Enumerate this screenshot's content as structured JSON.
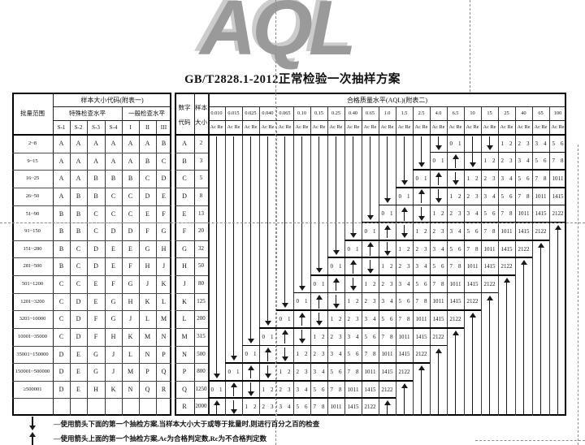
{
  "watermark": "AQL",
  "title": "GB/T2828.1-2012正常检验一次抽样方案",
  "left_table": {
    "batch_header": "批量范围",
    "code_header": "样本大小代码(附表一)",
    "special_header": "特殊检查水平",
    "general_header": "一般检查水平",
    "special_cols": [
      "S-1",
      "S-2",
      "S-3",
      "S-4"
    ],
    "general_cols": [
      "I",
      "II",
      "III"
    ],
    "rows": [
      {
        "range": "2~8",
        "codes": [
          "A",
          "A",
          "A",
          "A",
          "A",
          "A",
          "B"
        ]
      },
      {
        "range": "9~15",
        "codes": [
          "A",
          "A",
          "A",
          "A",
          "A",
          "B",
          "C"
        ]
      },
      {
        "range": "16~25",
        "codes": [
          "A",
          "A",
          "B",
          "B",
          "B",
          "C",
          "D"
        ]
      },
      {
        "range": "26~50",
        "codes": [
          "A",
          "B",
          "B",
          "C",
          "C",
          "D",
          "E"
        ]
      },
      {
        "range": "51~90",
        "codes": [
          "B",
          "B",
          "C",
          "C",
          "C",
          "E",
          "F"
        ]
      },
      {
        "range": "91~150",
        "codes": [
          "B",
          "B",
          "C",
          "D",
          "D",
          "F",
          "G"
        ]
      },
      {
        "range": "151~280",
        "codes": [
          "B",
          "C",
          "D",
          "E",
          "E",
          "G",
          "H"
        ]
      },
      {
        "range": "281~500",
        "codes": [
          "B",
          "C",
          "D",
          "E",
          "F",
          "H",
          "J"
        ]
      },
      {
        "range": "501~1200",
        "codes": [
          "C",
          "C",
          "E",
          "F",
          "G",
          "J",
          "K"
        ]
      },
      {
        "range": "1201~3200",
        "codes": [
          "C",
          "D",
          "E",
          "G",
          "H",
          "K",
          "L"
        ]
      },
      {
        "range": "3201~10000",
        "codes": [
          "C",
          "D",
          "F",
          "G",
          "J",
          "L",
          "M"
        ]
      },
      {
        "range": "10001~35000",
        "codes": [
          "C",
          "D",
          "F",
          "H",
          "K",
          "M",
          "N"
        ]
      },
      {
        "range": "35001~150000",
        "codes": [
          "D",
          "E",
          "G",
          "J",
          "L",
          "N",
          "P"
        ]
      },
      {
        "range": "150001~500000",
        "codes": [
          "D",
          "E",
          "G",
          "J",
          "M",
          "P",
          "Q"
        ]
      },
      {
        "range": "≥500001",
        "codes": [
          "D",
          "E",
          "H",
          "K",
          "N",
          "Q",
          "R"
        ]
      },
      {
        "range": "",
        "codes": [
          "",
          "",
          "",
          "",
          "",
          "",
          ""
        ]
      }
    ]
  },
  "right_table": {
    "code_header_lines": [
      "数字",
      "代码"
    ],
    "size_header_lines": [
      "样本",
      "大小"
    ],
    "aql_header": "合格质量水平(AQL)(附表二)",
    "ac_re_label": "Ac Re",
    "aql_values": [
      "0.010",
      "0.015",
      "0.025",
      "0.040",
      "0.065",
      "0.10",
      "0.15",
      "0.25",
      "0.40",
      "0.65",
      "1.0",
      "1.5",
      "2.5",
      "4.0",
      "6.5",
      "10",
      "15",
      "25",
      "40",
      "65",
      "100"
    ],
    "rows": [
      {
        "code": "A",
        "size": "2",
        "cells": {
          "14": "0 1",
          "17": "1 2",
          "18": "2 3",
          "19": "3 4",
          "20": "5 6"
        }
      },
      {
        "code": "B",
        "size": "3",
        "cells": {
          "13": "0 1",
          "14": "u",
          "16": "1 2",
          "17": "2 3",
          "18": "3 4",
          "19": "5 6",
          "20": "7 8"
        }
      },
      {
        "code": "C",
        "size": "5",
        "cells": {
          "12": "0 1",
          "13": "u",
          "14": "d",
          "15": "1 2",
          "16": "2 3",
          "17": "3 4",
          "18": "5 6",
          "19": "7 8",
          "20": "10 11"
        }
      },
      {
        "code": "D",
        "size": "8",
        "cells": {
          "11": "0 1",
          "12": "u",
          "13": "d",
          "14": "1 2",
          "15": "2 3",
          "16": "3 4",
          "17": "5 6",
          "18": "7 8",
          "19": "10 11",
          "20": "14 15"
        }
      },
      {
        "code": "E",
        "size": "13",
        "cells": {
          "10": "0 1",
          "11": "u",
          "12": "d",
          "13": "1 2",
          "14": "2 3",
          "15": "3 4",
          "16": "5 6",
          "17": "7 8",
          "18": "10 11",
          "19": "14 15",
          "20": "21 22"
        }
      },
      {
        "code": "F",
        "size": "20",
        "cells": {
          "9": "0 1",
          "10": "u",
          "11": "d",
          "12": "1 2",
          "13": "2 3",
          "14": "3 4",
          "15": "5 6",
          "16": "7 8",
          "17": "10 11",
          "18": "14 15",
          "19": "21 22"
        }
      },
      {
        "code": "G",
        "size": "32",
        "cells": {
          "8": "0 1",
          "9": "u",
          "10": "d",
          "11": "1 2",
          "12": "2 3",
          "13": "3 4",
          "14": "5 6",
          "15": "7 8",
          "16": "10 11",
          "17": "14 15",
          "18": "21 22"
        }
      },
      {
        "code": "H",
        "size": "50",
        "cells": {
          "7": "0 1",
          "8": "u",
          "9": "d",
          "10": "1 2",
          "11": "2 3",
          "12": "3 4",
          "13": "5 6",
          "14": "7 8",
          "15": "10 11",
          "16": "14 15",
          "17": "21 22"
        }
      },
      {
        "code": "J",
        "size": "80",
        "cells": {
          "6": "0 1",
          "7": "u",
          "8": "d",
          "9": "1 2",
          "10": "2 3",
          "11": "3 4",
          "12": "5 6",
          "13": "7 8",
          "14": "10 11",
          "15": "14 15",
          "16": "21 22"
        }
      },
      {
        "code": "K",
        "size": "125",
        "cells": {
          "5": "0 1",
          "6": "u",
          "7": "d",
          "8": "1 2",
          "9": "2 3",
          "10": "3 4",
          "11": "5 6",
          "12": "7 8",
          "13": "10 11",
          "14": "14 15",
          "15": "21 22"
        }
      },
      {
        "code": "L",
        "size": "200",
        "cells": {
          "4": "0 1",
          "5": "u",
          "6": "d",
          "7": "1 2",
          "8": "2 3",
          "9": "3 4",
          "10": "5 6",
          "11": "7 8",
          "12": "10 11",
          "13": "14 15",
          "14": "21 22"
        }
      },
      {
        "code": "M",
        "size": "315",
        "cells": {
          "3": "0 1",
          "4": "u",
          "5": "d",
          "6": "1 2",
          "7": "2 3",
          "8": "3 4",
          "9": "5 6",
          "10": "7 8",
          "11": "10 11",
          "12": "14 15",
          "13": "21 22"
        }
      },
      {
        "code": "N",
        "size": "500",
        "cells": {
          "2": "0 1",
          "3": "u",
          "4": "d",
          "5": "1 2",
          "6": "2 3",
          "7": "3 4",
          "8": "5 6",
          "9": "7 8",
          "10": "10 11",
          "11": "14 15",
          "12": "21 22"
        }
      },
      {
        "code": "P",
        "size": "800",
        "cells": {
          "1": "0 1",
          "2": "u",
          "3": "d",
          "4": "1 2",
          "5": "2 3",
          "6": "3 4",
          "7": "5 6",
          "8": "7 8",
          "9": "10 11",
          "10": "14 15",
          "11": "21 22"
        }
      },
      {
        "code": "Q",
        "size": "1250",
        "cells": {
          "0": "0 1",
          "1": "u",
          "2": "d",
          "3": "1 2",
          "4": "2 3",
          "5": "3 4",
          "6": "5 6",
          "7": "7 8",
          "8": "10 11",
          "9": "14 15",
          "10": "21 22"
        }
      },
      {
        "code": "R",
        "size": "2000",
        "cells": {
          "0": "u",
          "1": "d",
          "2": "1 2",
          "3": "2 3",
          "4": "3 4",
          "5": "5 6",
          "6": "7 8",
          "7": "10 11",
          "8": "14 15",
          "9": "21 22"
        }
      }
    ],
    "long_down_arrows": [
      [
        0,
        0,
        13
      ],
      [
        1,
        0,
        12
      ],
      [
        2,
        0,
        11
      ],
      [
        3,
        0,
        10
      ],
      [
        4,
        0,
        9
      ],
      [
        5,
        0,
        8
      ],
      [
        6,
        0,
        7
      ],
      [
        7,
        0,
        6
      ],
      [
        8,
        0,
        5
      ],
      [
        9,
        0,
        4
      ],
      [
        10,
        0,
        3
      ],
      [
        11,
        0,
        2
      ],
      [
        12,
        0,
        1
      ],
      [
        13,
        0,
        0
      ],
      [
        15,
        0,
        1
      ],
      [
        16,
        0,
        0
      ]
    ],
    "long_up_arrows": [
      [
        10,
        15
      ],
      [
        11,
        14
      ],
      [
        12,
        13
      ],
      [
        13,
        12
      ],
      [
        14,
        11
      ],
      [
        15,
        10
      ],
      [
        16,
        9
      ],
      [
        17,
        8
      ],
      [
        18,
        7
      ],
      [
        19,
        6
      ],
      [
        20,
        5
      ]
    ]
  },
  "notes": [
    {
      "arrow": "down",
      "text": "—使用箭头下面的第一个抽检方案,当样本大小大于或等于批量时,则进行百分之百的检查"
    },
    {
      "arrow": "up",
      "text": "—使用箭头上面的第一个抽检方案,Ac为合格判定数,Rc为不合格判定数"
    }
  ]
}
